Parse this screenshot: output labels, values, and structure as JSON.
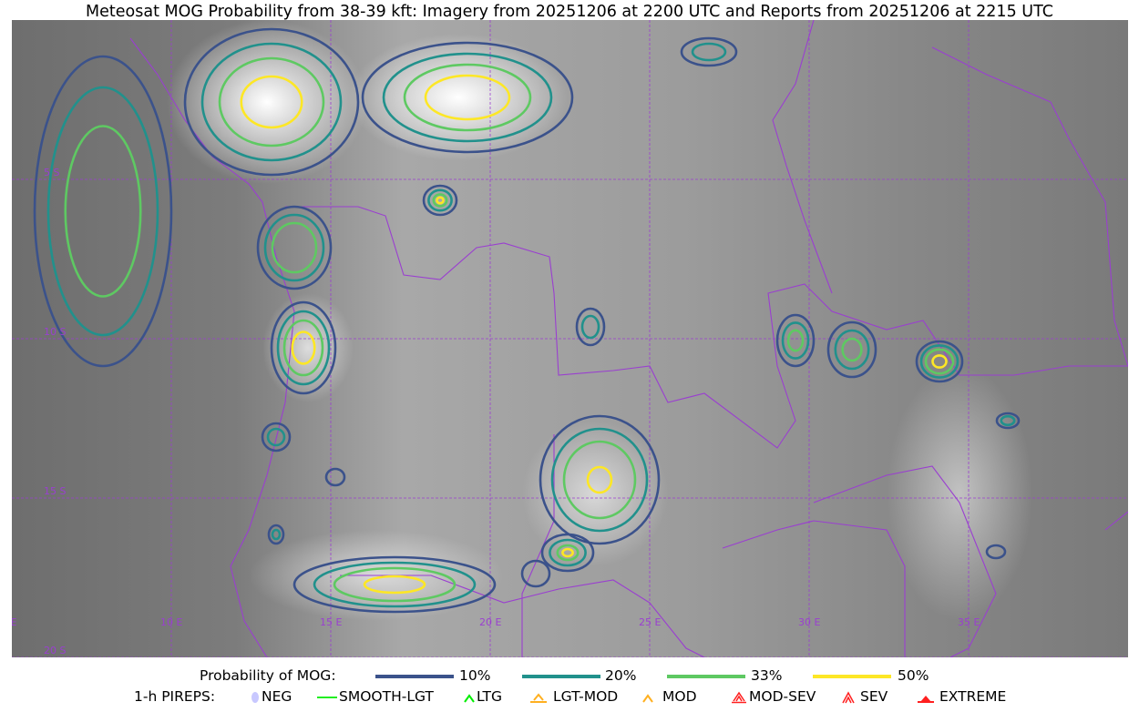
{
  "title": "Meteosat MOG Probability from 38-39 kft: Imagery from 20251206 at 2200 UTC and Reports from 20251206 at 2215 UTC",
  "map": {
    "lon_labels": [
      "5 E",
      "10 E",
      "15 E",
      "20 E",
      "25 E",
      "30 E",
      "35 E"
    ],
    "lat_labels": [
      "5 S",
      "10 S",
      "15 S",
      "20 S"
    ],
    "gridline_color": "#9a3fd0",
    "border_color": "#9a3fd0",
    "background": "grayscale infrared imagery"
  },
  "legend": {
    "probability_label": "Probability of MOG:",
    "levels": [
      {
        "label": "10%",
        "color": "#3b528b"
      },
      {
        "label": "20%",
        "color": "#21918c"
      },
      {
        "label": "33%",
        "color": "#5ec962"
      },
      {
        "label": "50%",
        "color": "#fde725"
      }
    ],
    "pireps_label": "1-h PIREPS:",
    "pireps": [
      {
        "label": "NEG",
        "color": "#c8c8ff",
        "icon": "neg-icon"
      },
      {
        "label": "SMOOTH-LGT",
        "color": "#22ee22",
        "icon": "line-icon"
      },
      {
        "label": "LTG",
        "color": "#00ee00",
        "icon": "caret-icon"
      },
      {
        "label": "LGT-MOD",
        "color": "#ffb020",
        "icon": "caret-bar-icon"
      },
      {
        "label": "MOD",
        "color": "#ffb020",
        "icon": "caret-icon"
      },
      {
        "label": "MOD-SEV",
        "color": "#ff2020",
        "icon": "double-caret-bar-icon"
      },
      {
        "label": "SEV",
        "color": "#ff2020",
        "icon": "double-caret-icon"
      },
      {
        "label": "EXTREME",
        "color": "#ff2020",
        "icon": "triangle-icon"
      }
    ]
  }
}
